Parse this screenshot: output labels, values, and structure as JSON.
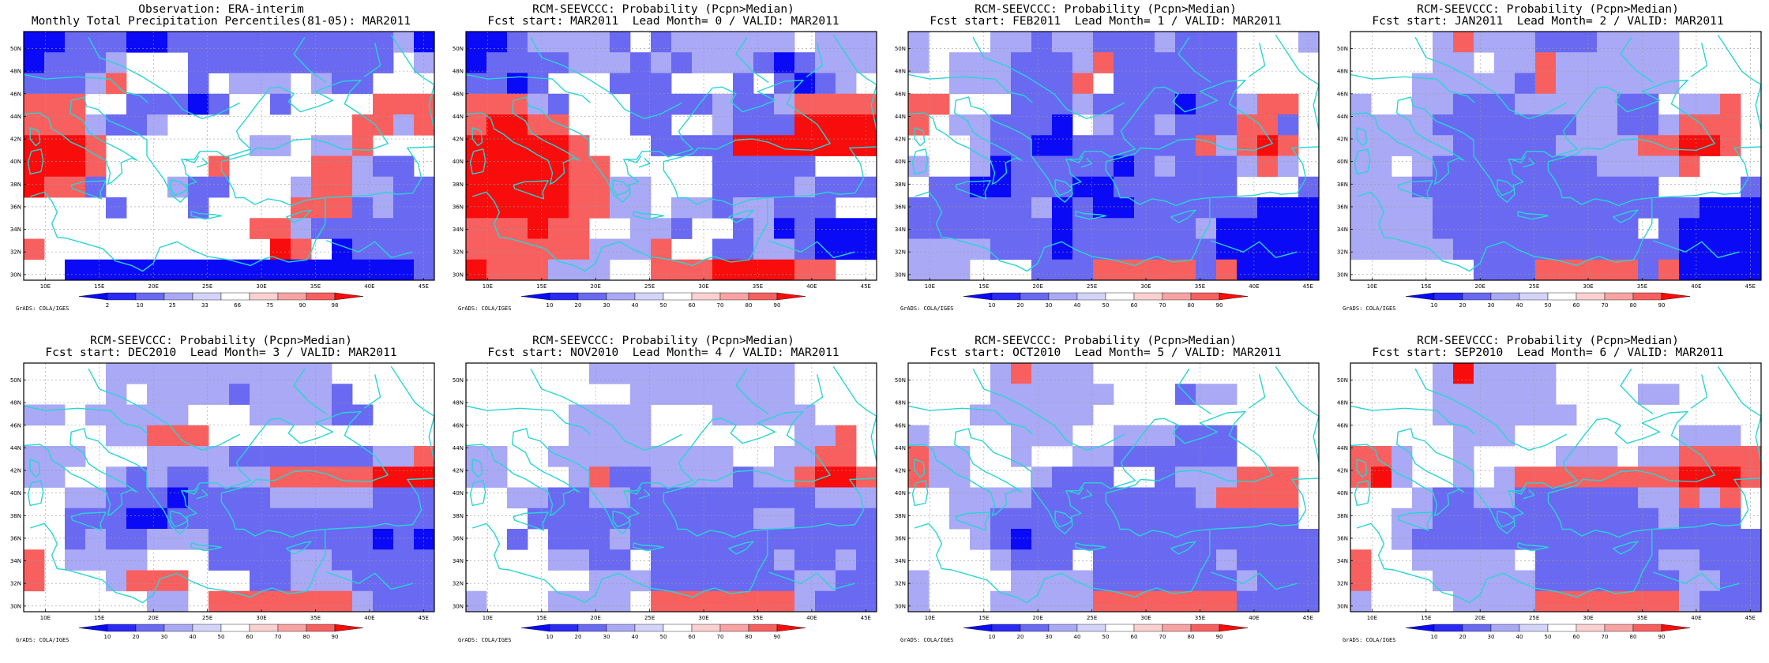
{
  "colors": {
    "strong_blue": "#0a0af6",
    "medium_blue": "#6969f2",
    "light_blue": "#a9a9f6",
    "neutral": "#ffffff",
    "light_red": "#f8a3a3",
    "medium_red": "#f86060",
    "strong_red": "#f80c0c",
    "coastline": "#2ad4d4"
  },
  "lon_labels": [
    "10E",
    "15E",
    "20E",
    "25E",
    "30E",
    "35E",
    "40E",
    "45E"
  ],
  "lat_labels": [
    "30N",
    "32N",
    "34N",
    "36N",
    "38N",
    "40N",
    "42N",
    "44N",
    "46N",
    "48N",
    "50N"
  ],
  "credit": "GrADS: COLA/IGES",
  "panels": [
    {
      "id": "obs",
      "title1": "Observation: ERA-interim",
      "title2": "Monthly Total Precipitation Percentiles(81-05): MAR2011",
      "colorbar_labels": [
        "2",
        "10",
        "25",
        "33",
        "66",
        "75",
        "90",
        "98"
      ],
      "grid": [
        "BBMMMBBMMMMMMMMMMMLB",
        "BMMMLNNNMMMMMMMMMMNL",
        "MMMLRNNNMNLLLNLMMNNN",
        "RRRNNMMMBMNNMNNNNRRR",
        "RRRLMMLNNNNNNNNNRRLR",
        "SSSRNNNNNNNLLNLLRNNN",
        "SSSRNNNNNRNNNNRRLMMN",
        "SRRMNNNLMMNNNLRRLLMM",
        "NNNNMNNNMNNNNRRRMLMM",
        "NNNNNNNNNNNRRLMMMMMM",
        "RNNNNNNNNNNNSRNBMMMM",
        "NNBBBBBBBBBBBBBBBBBM"
      ]
    },
    {
      "id": "lead0",
      "title1": "RCM-SEEVCCC: Probability (Pcpn>Median)",
      "title2": "Fcst start: MAR2011  Lead Month= 0 / VALID: MAR2011",
      "colorbar_labels": [
        "10",
        "20",
        "30",
        "40",
        "50",
        "60",
        "70",
        "80",
        "90"
      ],
      "grid": [
        "BBMLLLLMNMLLLLLLNLLL",
        "BMMMMLLLMLMLLLMBMLLL",
        "MMBMNNNMMMNNNMNMBMLN",
        "RRRLMNNNMMMMLMMLRRRR",
        "RSSRRNNNMMNNLMMMSSSS",
        "SSSSSRNNNMMMMSSSSSSS",
        "SSSSSRRNNNNNMMMMMNNN",
        "SSSSSRRLLNNNMMMMLMMM",
        "SSSSSRRLLNLLMLLMMMNN",
        "RRRSRRNNLLMNNMLBMBBB",
        "RRRRRRLLLRNNMMLLMBBB",
        "SRRRLLLNNRRRSSSSRRNN"
      ]
    },
    {
      "id": "lead1",
      "title1": "RCM-SEEVCCC: Probability (Pcpn>Median)",
      "title2": "Fcst start: FEB2011  Lead Month= 1 / VALID: MAR2011",
      "colorbar_labels": [
        "10",
        "20",
        "30",
        "40",
        "50",
        "60",
        "70",
        "80",
        "90"
      ],
      "grid": [
        "LNNNLLMLLMMMLMMMNNNL",
        "LNLLLMMMLRMMMMMMNNNN",
        "NNLLLMMMRNMMMMMMNNNN",
        "RRNNNMMMLMMMMBMMLRRN",
        "RNLLMMMBNLMMLMMMRRMN",
        "NNNLMMBBMMMMMMRLRSRN",
        "LNNLBMMMMMBMLMMMLRLN",
        "NMMBBMMMBBMMMMMMNNNM",
        "MMMMMMLBMBBMMMMMMBBB",
        "MMMMMMMBMMMMMMLBBBBB",
        "LLLLMMMBMMMMMMMBBBBB",
        "LLLNNNMMMRRRRRMRBBBB"
      ]
    },
    {
      "id": "lead2",
      "title1": "RCM-SEEVCCC: Probability (Pcpn>Median)",
      "title2": "Fcst start: JAN2011  Lead Month= 2 / VALID: MAR2011",
      "colorbar_labels": [
        "10",
        "20",
        "30",
        "40",
        "50",
        "60",
        "70",
        "80",
        "90"
      ],
      "grid": [
        "NNNNLRLLLMMMLLLLNNNN",
        "NNNNLLNLLRLLLLLLNNNN",
        "NNNLLLLLMRLLLLLLNNNN",
        "LNNLLMMMLLLLLMMNLLRN",
        "LLLLMMMMMMMLLMMLRRRN",
        "LLLLLMMMMMLLLLRRSSRN",
        "LLNLMMMMMMMMLLLLRNNN",
        "LLLMMMMMMMMMMMMNNNNM",
        "LLLLMMMMMMMMMMMMMBBB",
        "LLLLMMMMMMMMMMNMBBBB",
        "LLLLLMMMMMMMMMMMBBBB",
        "NNNNNNMMMRRRRRMRBBBB"
      ]
    },
    {
      "id": "lead3",
      "title1": "RCM-SEEVCCC: Probability (Pcpn>Median)",
      "title2": "Fcst start: DEC2010  Lead Month= 3 / VALID: MAR2011",
      "colorbar_labels": [
        "10",
        "20",
        "30",
        "40",
        "50",
        "60",
        "70",
        "80",
        "90"
      ],
      "grid": [
        "NNNNLLLLLLLLLLLNNNNN",
        "NNNNLNLLLLMLLLLMNNNN",
        "LLNLLLLLNNNLLLLMMNNN",
        "NNNNLLRRRNNNNNNNNNNN",
        "LLLNNNLLLLMMMMMMMLLR",
        "LLNNLMLMMLLLRRRRRSSS",
        "NNLLMMMBMMMMLLLLLMMM",
        "NNMMMBBMMMMMMMMMMMMM",
        "NNMLMMLLLMMMMMMMMBMB",
        "RNLLLLNNNMMMMLLMMMMM",
        "RNNNLRRRNNNMMLLLMMMM",
        "NNNNNNLLNRRRRRRRLMMM"
      ]
    },
    {
      "id": "lead4",
      "title1": "RCM-SEEVCCC: Probability (Pcpn>Median)",
      "title2": "Fcst start: NOV2010  Lead Month= 4 / VALID: MAR2011",
      "colorbar_labels": [
        "10",
        "20",
        "30",
        "40",
        "50",
        "60",
        "70",
        "80",
        "90"
      ],
      "grid": [
        "NNNNNNLLLLLLLLLLNNNN",
        "NNNNNNNNLLLLLLLLNNNN",
        "NNNNNLLLLNNNLLLLLNNN",
        "NNNNNLLLLNNNNNNNLLRN",
        "LLNNLLLLLLLLLNNLLRRN",
        "LLNNNLRMMLLLLMLLRSSR",
        "NNLLMMLLMMMMMMMMMLLL",
        "NNNMMMMMMMMMMMLLMMMM",
        "NNMNMMMLMMMMMMMMMMMM",
        "NNNNLLMMNMMMMMMLMMLM",
        "NNNNNNLLLMMMMMMMLLMM",
        "LNNNLLLLNRRRRRRRLMMM"
      ]
    },
    {
      "id": "lead5",
      "title1": "RCM-SEEVCCC: Probability (Pcpn>Median)",
      "title2": "Fcst start: OCT2010  Lead Month= 5 / VALID: MAR2011",
      "colorbar_labels": [
        "10",
        "20",
        "30",
        "40",
        "50",
        "60",
        "70",
        "80",
        "90"
      ],
      "grid": [
        "NNNNLRLLLNNNNNNNNNNN",
        "NNNNLLLLLLNNNMLLNNNN",
        "NNNLLLLLLNNNNNNNNNNN",
        "LNNNNLLLNNLLLMMMNNNN",
        "RLLNNLNNLLMMMMMMNNNN",
        "RLLNNNLMMMNNMLLLRRRN",
        "NNLLLLMMMMMMMMLRRRRN",
        "NNLLMMMMMMMMMMMMMMMN",
        "NNNLMBMMMMMMMMMMMMMM",
        "NNNNLMMMNMMMMMMLMMMM",
        "LNNNNLLLLMMMMMMMLMMM",
        "LNNNLLLLLRRRRRRRMMMM"
      ]
    },
    {
      "id": "lead6",
      "title1": "RCM-SEEVCCC: Probability (Pcpn>Median)",
      "title2": "Fcst start: SEP2010  Lead Month= 6 / VALID: MAR2011",
      "colorbar_labels": [
        "10",
        "20",
        "30",
        "40",
        "50",
        "60",
        "70",
        "80",
        "90"
      ],
      "grid": [
        "NNNNLSLLLLNNNNNNNNNN",
        "NNNNLLLLLLNNNNLLNNNN",
        "NNNNLLLLLLLNNNNNNNNN",
        "NNNNNLLLNNNNNNNNLLLN",
        "RRLNNLNNNNLLLNLLRRRR",
        "RSLNNLNLRRRRRRRRSSSR",
        "NNNLMMLLMMMMMMLLRLRN",
        "NNLLMMMMMMMMMMMLMMMN",
        "NNLMMMMMMMMMMMMMMMMM",
        "RNNLLLLLNMMMMMMLLMMM",
        "RNNNLLLLLMMMMMMMLLMM",
        "LNNNNLLLLRRRRRRRLMMM"
      ]
    }
  ]
}
